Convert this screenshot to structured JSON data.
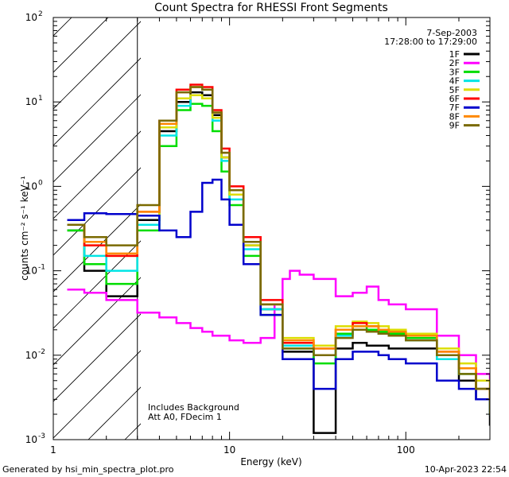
{
  "footer": {
    "generated_by": "Generated by hsi_min_spectra_plot.pro",
    "timestamp": "10-Apr-2023 22:54"
  },
  "chart_data": {
    "type": "line",
    "title": "Count Spectra for RHESSI Front Segments",
    "xlabel": "Energy (keV)",
    "ylabel": "counts cm⁻² s⁻¹ keV⁻¹",
    "x_scale": "log",
    "y_scale": "log",
    "xlim": [
      1,
      300
    ],
    "ylim": [
      0.001,
      100
    ],
    "x_ticks": [
      {
        "value": 1,
        "label": "1"
      },
      {
        "value": 10,
        "label": "10"
      },
      {
        "value": 100,
        "label": "100"
      }
    ],
    "y_ticks": [
      {
        "value": 100,
        "label": "10",
        "exp": "2"
      },
      {
        "value": 10,
        "label": "10",
        "exp": "1"
      },
      {
        "value": 1,
        "label": "10",
        "exp": "0"
      },
      {
        "value": 0.1,
        "label": "10",
        "exp": "-1"
      },
      {
        "value": 0.01,
        "label": "10",
        "exp": "-2"
      },
      {
        "value": 0.001,
        "label": "10",
        "exp": "-3"
      }
    ],
    "date": "7-Sep-2003",
    "time_range": "17:28:00 to 17:29:00",
    "hatched_region": {
      "x_min": 1,
      "x_max": 3
    },
    "annotations": [
      "Includes Background",
      "Att A0, FDecim 1"
    ],
    "colors": {
      "1F": "#000000",
      "2F": "#ff00ff",
      "3F": "#00dd00",
      "4F": "#00e5e5",
      "5F": "#dddd00",
      "6F": "#ff0000",
      "7F": "#0000cc",
      "8F": "#ff8800",
      "9F": "#7a6a00"
    },
    "series": [
      {
        "name": "1F",
        "x": [
          1.2,
          1.5,
          2.0,
          3.0,
          4.0,
          5.0,
          6.0,
          7.0,
          8.0,
          9.0,
          10,
          12,
          15,
          20,
          30,
          40,
          50,
          60,
          70,
          80,
          100,
          150,
          200,
          250,
          300
        ],
        "y": [
          0.3,
          0.1,
          0.05,
          0.4,
          4.5,
          10,
          13,
          12,
          7,
          2.2,
          0.8,
          0.2,
          0.035,
          0.011,
          0.0012,
          0.012,
          0.014,
          0.013,
          0.013,
          0.012,
          0.012,
          0.009,
          0.005,
          0.003,
          0.0015
        ]
      },
      {
        "name": "2F",
        "x": [
          1.2,
          1.5,
          2.0,
          3.0,
          4.0,
          5.0,
          6.0,
          7.0,
          8.0,
          10,
          12,
          15,
          18,
          20,
          22,
          25,
          30,
          40,
          50,
          60,
          70,
          80,
          100,
          150,
          200,
          250,
          300
        ],
        "y": [
          0.06,
          0.055,
          0.045,
          0.032,
          0.028,
          0.024,
          0.021,
          0.019,
          0.017,
          0.015,
          0.014,
          0.016,
          0.04,
          0.08,
          0.1,
          0.09,
          0.08,
          0.05,
          0.055,
          0.065,
          0.045,
          0.04,
          0.035,
          0.017,
          0.01,
          0.006,
          0.004
        ]
      },
      {
        "name": "3F",
        "x": [
          1.2,
          1.5,
          2.0,
          3.0,
          4.0,
          5.0,
          6.0,
          7.0,
          8.0,
          9.0,
          10,
          12,
          15,
          20,
          30,
          40,
          50,
          60,
          70,
          80,
          100,
          150,
          200,
          250,
          300
        ],
        "y": [
          0.3,
          0.12,
          0.07,
          0.3,
          3,
          8,
          9.5,
          9,
          4.5,
          1.5,
          0.6,
          0.15,
          0.03,
          0.012,
          0.008,
          0.018,
          0.022,
          0.02,
          0.019,
          0.018,
          0.016,
          0.01,
          0.006,
          0.004,
          0.002
        ]
      },
      {
        "name": "4F",
        "x": [
          1.2,
          1.5,
          2.0,
          3.0,
          4.0,
          5.0,
          6.0,
          7.0,
          8.0,
          9.0,
          10,
          12,
          15,
          20,
          30,
          40,
          50,
          60,
          70,
          80,
          100,
          150,
          200,
          250,
          300
        ],
        "y": [
          0.35,
          0.15,
          0.1,
          0.35,
          4,
          9,
          12,
          11,
          6,
          2,
          0.7,
          0.18,
          0.035,
          0.013,
          0.01,
          0.017,
          0.02,
          0.019,
          0.018,
          0.017,
          0.015,
          0.009,
          0.006,
          0.004,
          0.002
        ]
      },
      {
        "name": "5F",
        "x": [
          1.2,
          1.5,
          2.0,
          3.0,
          4.0,
          5.0,
          6.0,
          7.0,
          8.0,
          9.0,
          10,
          12,
          15,
          20,
          30,
          40,
          50,
          60,
          70,
          80,
          100,
          150,
          200,
          250,
          300
        ],
        "y": [
          0.35,
          0.2,
          0.15,
          0.45,
          5,
          11,
          12,
          11,
          6.5,
          2.2,
          0.8,
          0.2,
          0.04,
          0.016,
          0.013,
          0.022,
          0.025,
          0.024,
          0.022,
          0.02,
          0.018,
          0.012,
          0.008,
          0.005,
          0.003
        ]
      },
      {
        "name": "6F",
        "x": [
          1.2,
          1.5,
          2.0,
          3.0,
          4.0,
          5.0,
          6.0,
          7.0,
          8.0,
          9.0,
          10,
          12,
          15,
          20,
          30,
          40,
          50,
          60,
          70,
          80,
          100,
          150,
          200,
          250,
          300
        ],
        "y": [
          0.35,
          0.2,
          0.15,
          0.5,
          6,
          14,
          16,
          15,
          8,
          2.8,
          1,
          0.25,
          0.045,
          0.014,
          0.012,
          0.02,
          0.024,
          0.022,
          0.02,
          0.019,
          0.017,
          0.011,
          0.007,
          0.004,
          0.003
        ]
      },
      {
        "name": "7F",
        "x": [
          1.2,
          1.5,
          2.0,
          3.0,
          4.0,
          5.0,
          6.0,
          7.0,
          8.0,
          9.0,
          10,
          12,
          15,
          20,
          30,
          40,
          50,
          60,
          70,
          80,
          100,
          150,
          200,
          250,
          300
        ],
        "y": [
          0.4,
          0.48,
          0.47,
          0.45,
          0.3,
          0.25,
          0.5,
          1.1,
          1.2,
          0.7,
          0.35,
          0.12,
          0.03,
          0.009,
          0.004,
          0.009,
          0.011,
          0.011,
          0.01,
          0.009,
          0.008,
          0.005,
          0.004,
          0.003,
          0.002
        ]
      },
      {
        "name": "8F",
        "x": [
          1.2,
          1.5,
          2.0,
          3.0,
          4.0,
          5.0,
          6.0,
          7.0,
          8.0,
          9.0,
          10,
          12,
          15,
          20,
          30,
          40,
          50,
          60,
          70,
          80,
          100,
          150,
          200,
          250,
          300
        ],
        "y": [
          0.35,
          0.22,
          0.16,
          0.5,
          5.5,
          13,
          15,
          14,
          7.5,
          2.5,
          0.9,
          0.22,
          0.04,
          0.015,
          0.012,
          0.02,
          0.022,
          0.022,
          0.02,
          0.019,
          0.017,
          0.011,
          0.007,
          0.004,
          0.003
        ]
      },
      {
        "name": "9F",
        "x": [
          1.2,
          1.5,
          2.0,
          3.0,
          4.0,
          5.0,
          6.0,
          7.0,
          8.0,
          9.0,
          10,
          12,
          15,
          20,
          30,
          40,
          50,
          60,
          70,
          80,
          100,
          150,
          200,
          250,
          300
        ],
        "y": [
          0.35,
          0.25,
          0.2,
          0.6,
          6,
          13,
          15,
          14,
          7.5,
          2.5,
          0.9,
          0.22,
          0.04,
          0.012,
          0.01,
          0.016,
          0.02,
          0.019,
          0.018,
          0.017,
          0.015,
          0.01,
          0.006,
          0.004,
          0.002
        ]
      }
    ]
  }
}
